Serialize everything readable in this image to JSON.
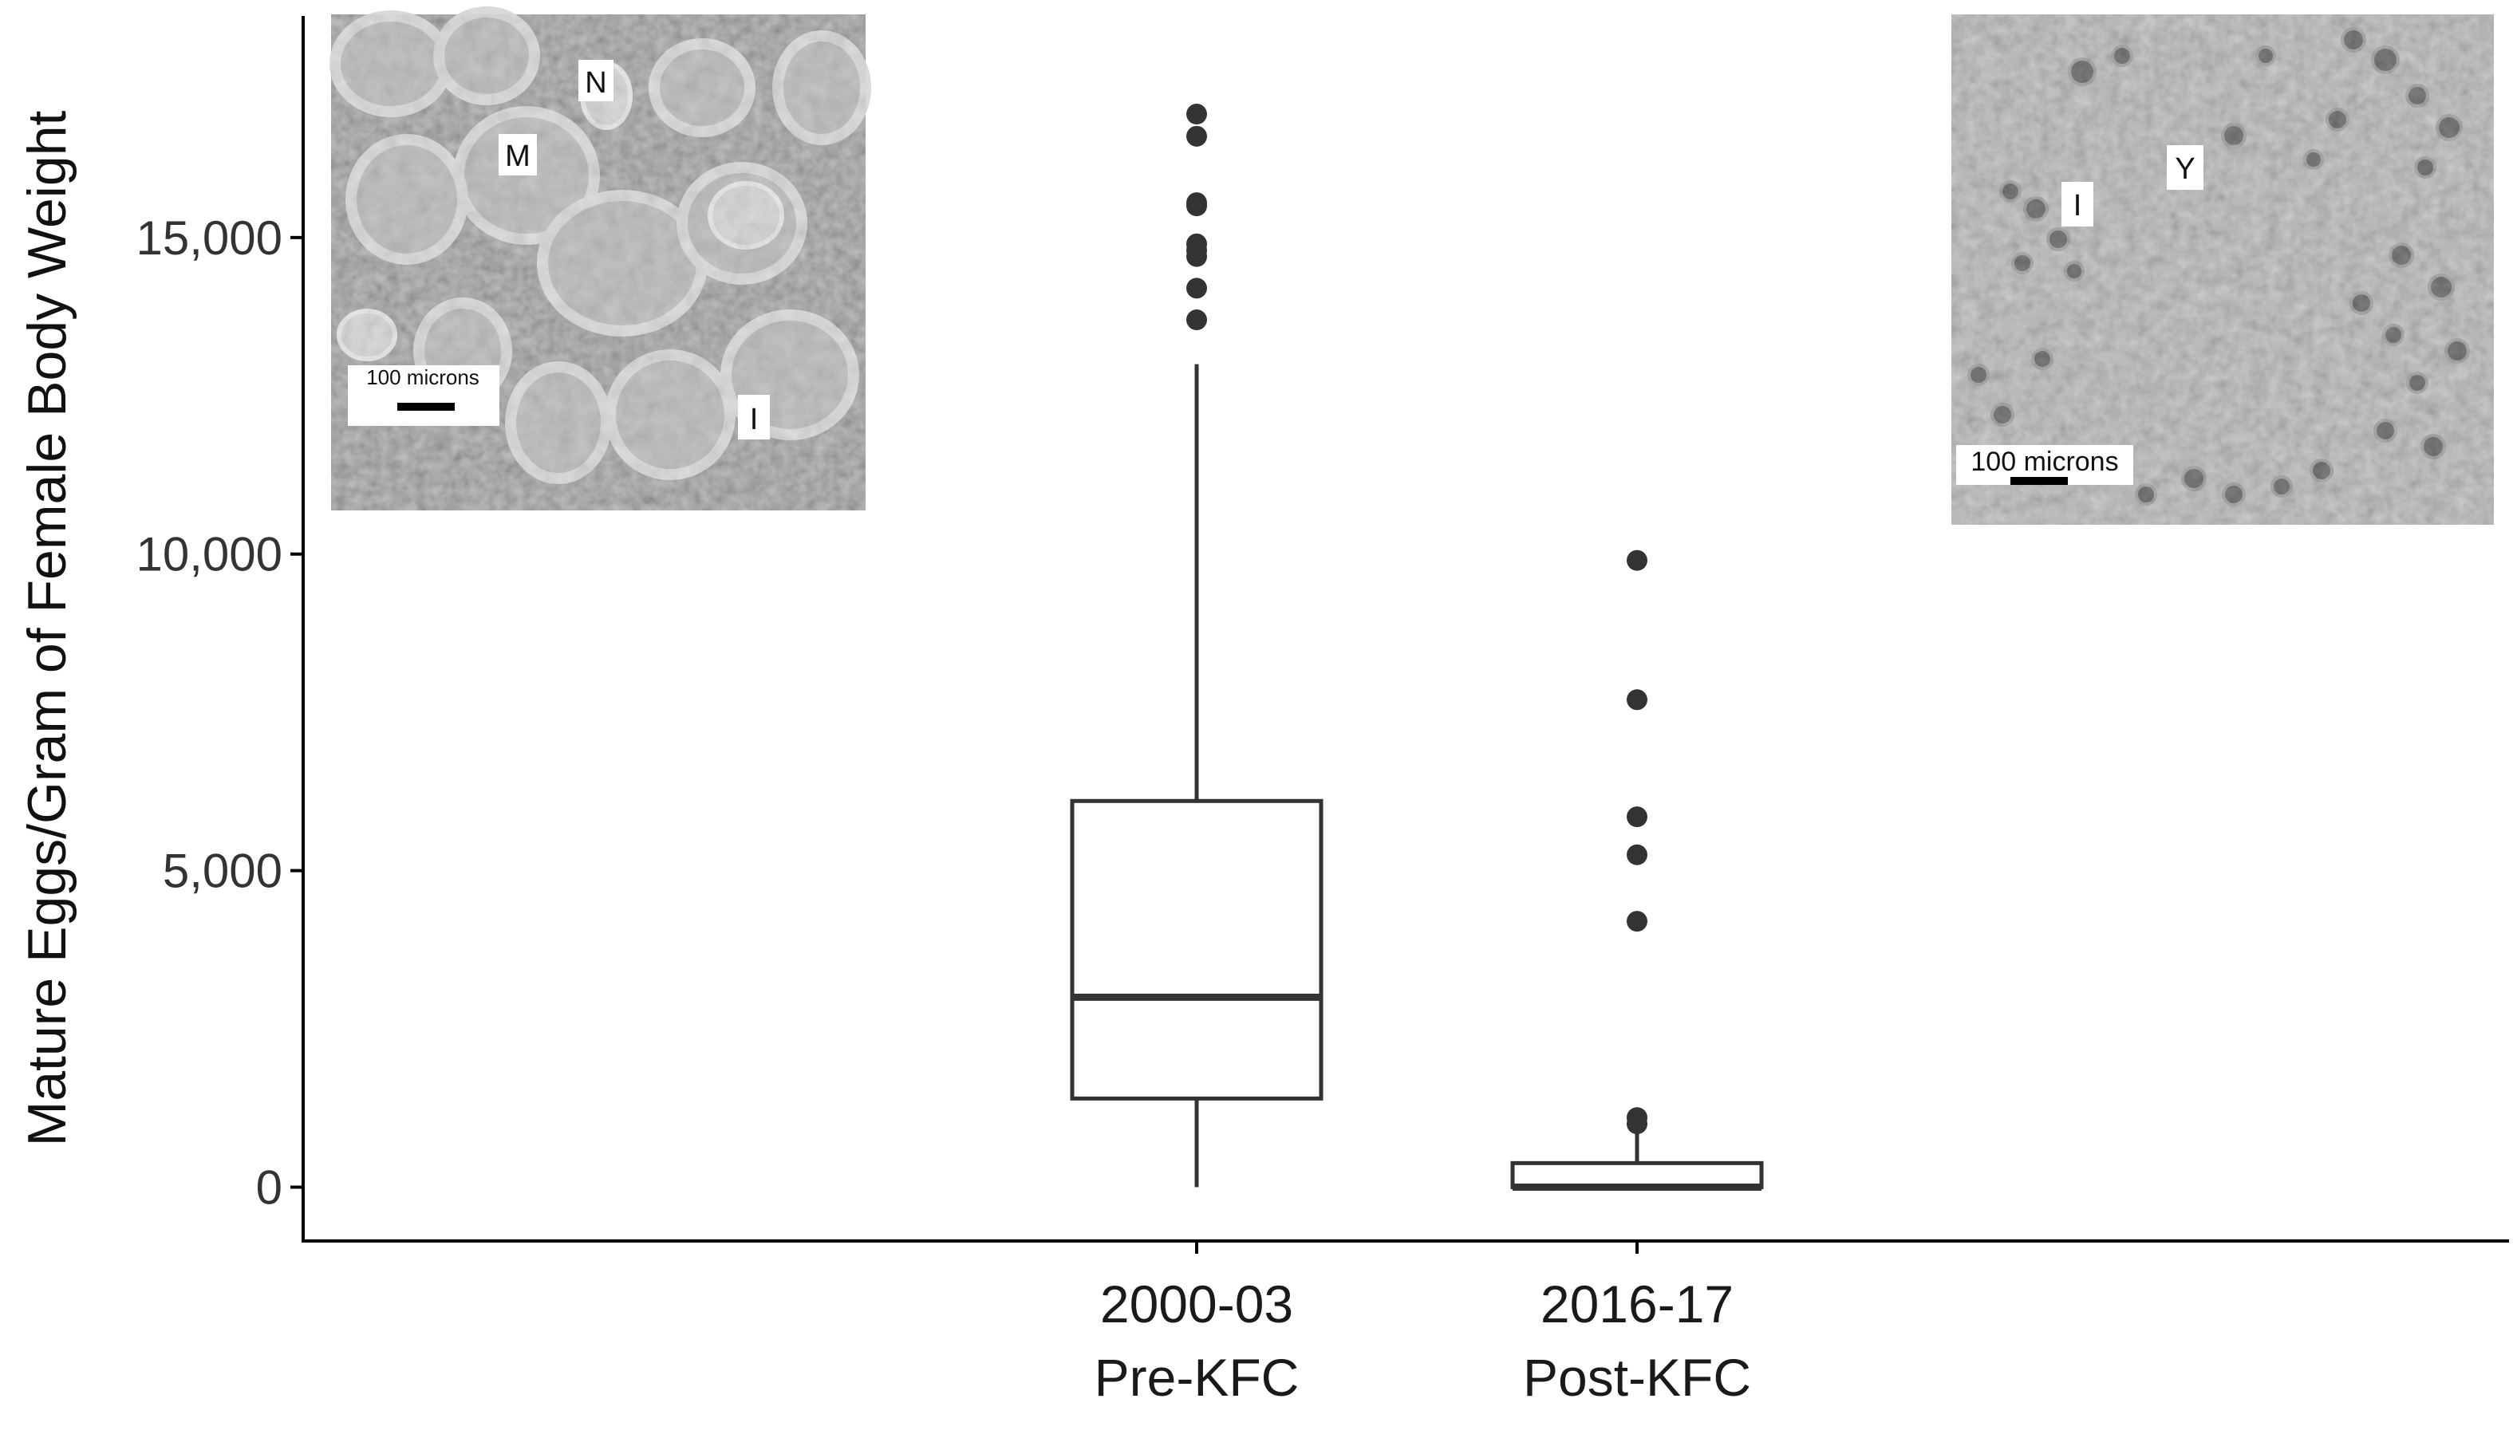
{
  "chart_data": {
    "type": "box",
    "title": "",
    "xlabel": "",
    "ylabel": "Mature Eggs/Gram of Female Body Weight",
    "ylim": [
      -850,
      18500
    ],
    "y_ticks": [
      0,
      5000,
      10000,
      15000
    ],
    "y_tick_labels": [
      "0",
      "5,000",
      "10,000",
      "15,000"
    ],
    "grid": false,
    "categories": [
      {
        "line1": "2000-03",
        "line2": "Pre-KFC"
      },
      {
        "line1": "2016-17",
        "line2": "Post-KFC"
      }
    ],
    "boxes": [
      {
        "whisker_low": 0,
        "q1": 1400,
        "median": 3000,
        "q3": 6100,
        "whisker_high": 13000,
        "outliers": [
          13700,
          14200,
          14700,
          14800,
          14900,
          15500,
          15550,
          16600,
          16950
        ]
      },
      {
        "whisker_low": 0,
        "q1": 0,
        "median": 0,
        "q3": 380,
        "whisker_high": 950,
        "outliers": [
          1000,
          1100,
          4200,
          5250,
          5850,
          7700,
          9900
        ]
      }
    ]
  },
  "insets": {
    "left": {
      "labels": [
        "N",
        "M",
        "I"
      ],
      "scale_bar_label": "100 microns"
    },
    "right": {
      "labels": [
        "I",
        "Y"
      ],
      "scale_bar_label": "100 microns"
    }
  },
  "colors": {
    "axis": "#000000",
    "box": "#333333",
    "point": "#333333"
  }
}
